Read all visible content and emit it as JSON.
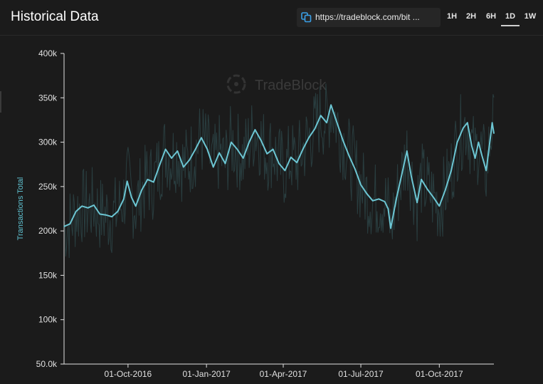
{
  "header": {
    "title": "Historical Data",
    "url": "https://tradeblock.com/bit ...",
    "ranges": [
      "1H",
      "2H",
      "6H",
      "1D",
      "1W"
    ],
    "active_range": "1D"
  },
  "watermark": "TradeBlock",
  "colors": {
    "background": "#1b1b1b",
    "line": "#6cc6d3",
    "raw": "#2f4a4c",
    "axis": "#e0e0e0",
    "ylabel": "#5fc0cf"
  },
  "chart_data": {
    "type": "line",
    "ylabel": "Transactions Total",
    "ylim": [
      50000,
      400000
    ],
    "yticks": [
      {
        "value": 400000,
        "label": "400k"
      },
      {
        "value": 350000,
        "label": "350k"
      },
      {
        "value": 300000,
        "label": "300k"
      },
      {
        "value": 250000,
        "label": "250k"
      },
      {
        "value": 200000,
        "label": "200k"
      },
      {
        "value": 150000,
        "label": "150k"
      },
      {
        "value": 100000,
        "label": "100k"
      },
      {
        "value": 50000,
        "label": "50.0k"
      }
    ],
    "xlim": [
      "2016-07-18",
      "2017-12-04"
    ],
    "xticks": [
      {
        "date": "2016-10-01",
        "label": "01-Oct-2016"
      },
      {
        "date": "2017-01-01",
        "label": "01-Jan-2017"
      },
      {
        "date": "2017-04-01",
        "label": "01-Apr-2017"
      },
      {
        "date": "2017-07-01",
        "label": "01-Jul-2017"
      },
      {
        "date": "2017-10-01",
        "label": "01-Oct-2017"
      }
    ],
    "grid": false,
    "series": [
      {
        "style": "moving-average",
        "points": [
          [
            "2016-07-18",
            205000
          ],
          [
            "2016-07-25",
            208000
          ],
          [
            "2016-08-01",
            222000
          ],
          [
            "2016-08-08",
            228000
          ],
          [
            "2016-08-15",
            226000
          ],
          [
            "2016-08-22",
            229000
          ],
          [
            "2016-08-29",
            219000
          ],
          [
            "2016-09-05",
            218000
          ],
          [
            "2016-09-12",
            216000
          ],
          [
            "2016-09-19",
            222000
          ],
          [
            "2016-09-26",
            236000
          ],
          [
            "2016-09-30",
            256000
          ],
          [
            "2016-10-05",
            238000
          ],
          [
            "2016-10-10",
            228000
          ],
          [
            "2016-10-17",
            246000
          ],
          [
            "2016-10-24",
            258000
          ],
          [
            "2016-10-31",
            255000
          ],
          [
            "2016-11-07",
            274000
          ],
          [
            "2016-11-14",
            292000
          ],
          [
            "2016-11-21",
            282000
          ],
          [
            "2016-11-28",
            290000
          ],
          [
            "2016-12-05",
            272000
          ],
          [
            "2016-12-12",
            280000
          ],
          [
            "2016-12-19",
            292000
          ],
          [
            "2016-12-26",
            305000
          ],
          [
            "2017-01-02",
            292000
          ],
          [
            "2017-01-09",
            272000
          ],
          [
            "2017-01-16",
            288000
          ],
          [
            "2017-01-23",
            276000
          ],
          [
            "2017-01-30",
            300000
          ],
          [
            "2017-02-06",
            292000
          ],
          [
            "2017-02-13",
            282000
          ],
          [
            "2017-02-20",
            300000
          ],
          [
            "2017-02-27",
            314000
          ],
          [
            "2017-03-06",
            302000
          ],
          [
            "2017-03-13",
            287000
          ],
          [
            "2017-03-20",
            292000
          ],
          [
            "2017-03-27",
            276000
          ],
          [
            "2017-04-03",
            268000
          ],
          [
            "2017-04-10",
            283000
          ],
          [
            "2017-04-17",
            277000
          ],
          [
            "2017-04-24",
            292000
          ],
          [
            "2017-05-01",
            305000
          ],
          [
            "2017-05-08",
            315000
          ],
          [
            "2017-05-15",
            330000
          ],
          [
            "2017-05-22",
            322000
          ],
          [
            "2017-05-27",
            342000
          ],
          [
            "2017-06-03",
            322000
          ],
          [
            "2017-06-10",
            302000
          ],
          [
            "2017-06-17",
            285000
          ],
          [
            "2017-06-24",
            270000
          ],
          [
            "2017-07-01",
            252000
          ],
          [
            "2017-07-08",
            242000
          ],
          [
            "2017-07-15",
            234000
          ],
          [
            "2017-07-22",
            236000
          ],
          [
            "2017-07-29",
            233000
          ],
          [
            "2017-08-02",
            225000
          ],
          [
            "2017-08-05",
            203000
          ],
          [
            "2017-08-12",
            238000
          ],
          [
            "2017-08-19",
            268000
          ],
          [
            "2017-08-24",
            290000
          ],
          [
            "2017-08-29",
            262000
          ],
          [
            "2017-09-05",
            232000
          ],
          [
            "2017-09-10",
            258000
          ],
          [
            "2017-09-17",
            247000
          ],
          [
            "2017-09-24",
            238000
          ],
          [
            "2017-10-01",
            228000
          ],
          [
            "2017-10-08",
            246000
          ],
          [
            "2017-10-15",
            268000
          ],
          [
            "2017-10-22",
            300000
          ],
          [
            "2017-10-29",
            316000
          ],
          [
            "2017-11-03",
            322000
          ],
          [
            "2017-11-08",
            296000
          ],
          [
            "2017-11-12",
            282000
          ],
          [
            "2017-11-16",
            300000
          ],
          [
            "2017-11-20",
            285000
          ],
          [
            "2017-11-25",
            268000
          ],
          [
            "2017-11-30",
            306000
          ],
          [
            "2017-12-02",
            322000
          ],
          [
            "2017-12-04",
            310000
          ]
        ]
      }
    ]
  }
}
